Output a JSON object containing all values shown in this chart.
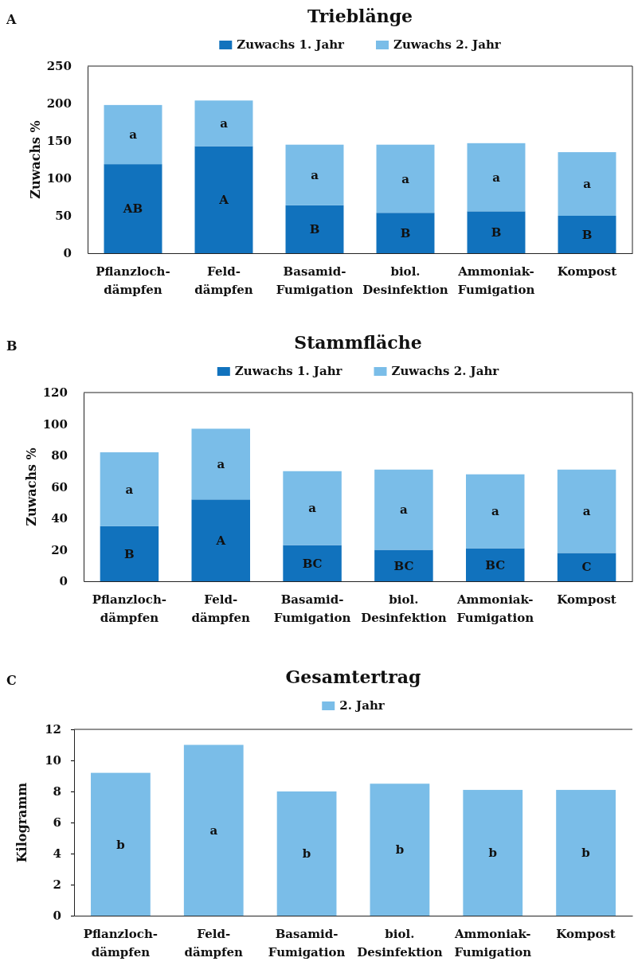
{
  "chart_data": [
    {
      "type": "bar",
      "title": "Trieblänge",
      "ylabel": "Zuwachs %",
      "categories": [
        "Pflanzloch-\ndämpfen",
        "Feld-\ndämpfen",
        "Basamid-\nFumigation",
        "biol.\nDesinfektion",
        "Ammoniak-\nFumigation",
        "Kompost"
      ],
      "stacked": true,
      "legend": "top",
      "ylim": [
        0,
        250
      ],
      "yticks": [
        0,
        50,
        100,
        150,
        200,
        250
      ],
      "series": [
        {
          "name": "Zuwachs 1. Jahr",
          "color": "#1172bd",
          "values": [
            119,
            143,
            64,
            54,
            56,
            50
          ],
          "value_labels": [
            "AB",
            "A",
            "B",
            "B",
            "B",
            "B"
          ]
        },
        {
          "name": "Zuwachs 2. Jahr",
          "color": "#7abde8",
          "values": [
            79,
            61,
            81,
            91,
            91,
            85
          ],
          "value_labels": [
            "a",
            "a",
            "a",
            "a",
            "a",
            "a"
          ]
        }
      ],
      "annotations": [
        "A"
      ]
    },
    {
      "type": "bar",
      "title": "Stammfläche",
      "ylabel": "Zuwachs %",
      "categories": [
        "Pflanzloch-\ndämpfen",
        "Feld-\ndämpfen",
        "Basamid-\nFumigation",
        "biol.\nDesinfektion",
        "Ammoniak-\nFumigation",
        "Kompost"
      ],
      "stacked": true,
      "legend": "top",
      "ylim": [
        0,
        120
      ],
      "yticks": [
        0,
        20,
        40,
        60,
        80,
        100,
        120
      ],
      "series": [
        {
          "name": "Zuwachs 1. Jahr",
          "color": "#1172bd",
          "values": [
            35,
            52,
            23,
            20,
            21,
            18
          ],
          "value_labels": [
            "B",
            "A",
            "BC",
            "BC",
            "BC",
            "C"
          ]
        },
        {
          "name": "Zuwachs 2. Jahr",
          "color": "#7abde8",
          "values": [
            47,
            45,
            47,
            51,
            47,
            53
          ],
          "value_labels": [
            "a",
            "a",
            "a",
            "a",
            "a",
            "a"
          ]
        }
      ],
      "annotations": [
        "B"
      ]
    },
    {
      "type": "bar",
      "title": "Gesamtertrag",
      "ylabel": "Kilogramm",
      "categories": [
        "Pflanzloch-\ndämpfen",
        "Feld-\ndämpfen",
        "Basamid-\nFumigation",
        "biol.\nDesinfektion",
        "Ammoniak-\nFumigation",
        "Kompost"
      ],
      "legend": "top",
      "ylim": [
        0,
        12
      ],
      "yticks": [
        0,
        2,
        4,
        6,
        8,
        10,
        12
      ],
      "series": [
        {
          "name": "2. Jahr",
          "color": "#7abde8",
          "values": [
            9.2,
            11.0,
            8.0,
            8.5,
            8.1,
            8.1
          ],
          "value_labels": [
            "b",
            "a",
            "b",
            "b",
            "b",
            "b"
          ]
        }
      ],
      "annotations": [
        "C"
      ]
    }
  ]
}
